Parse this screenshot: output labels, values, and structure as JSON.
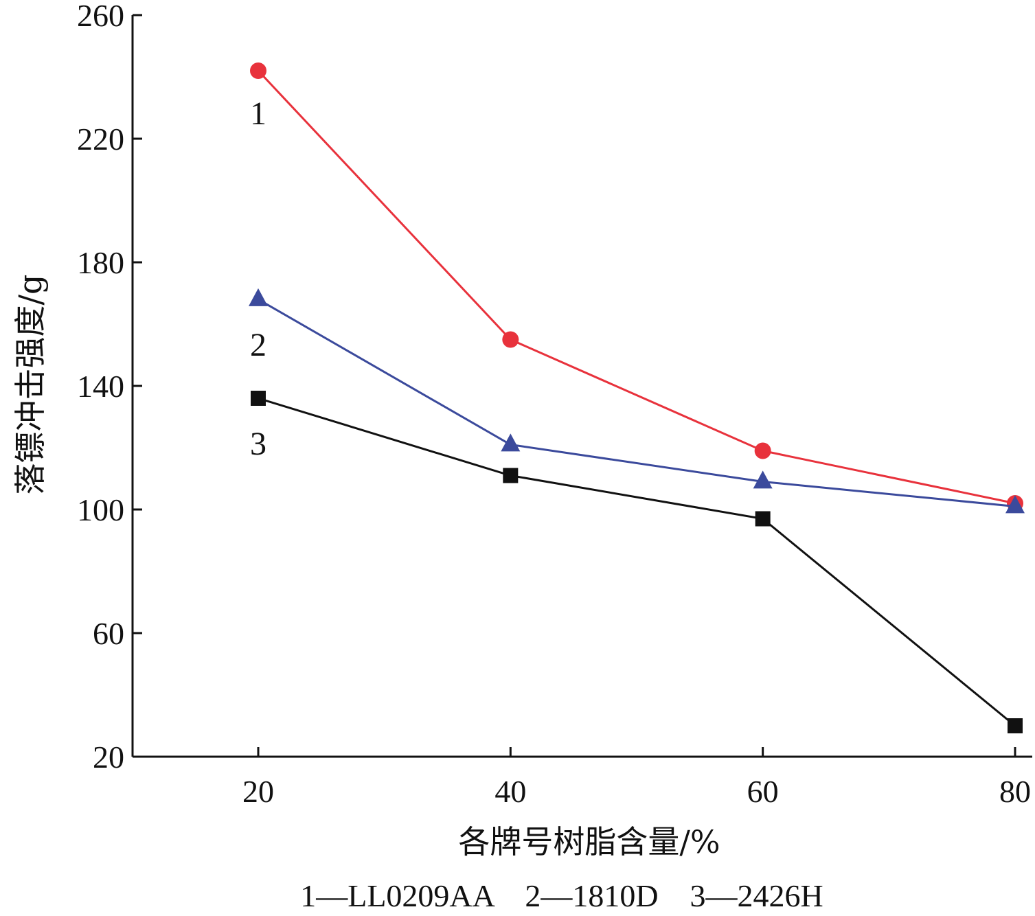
{
  "chart_data": {
    "type": "line",
    "title": "",
    "xlabel": "各牌号树脂含量/%",
    "ylabel": "落镖冲击强度/g",
    "x": [
      20,
      40,
      60,
      80
    ],
    "xlim": [
      10,
      80
    ],
    "ylim": [
      20,
      260
    ],
    "xticks": [
      "20",
      "40",
      "60",
      "80"
    ],
    "yticks": [
      "20",
      "60",
      "100",
      "140",
      "180",
      "220",
      "260"
    ],
    "grid": false,
    "series": [
      {
        "name": "LL0209AA",
        "label": "1",
        "color": "#e8323c",
        "marker": "circle",
        "values": [
          242,
          155,
          119,
          102
        ]
      },
      {
        "name": "1810D",
        "label": "2",
        "color": "#3b4a9c",
        "marker": "triangle",
        "values": [
          168,
          121,
          109,
          101
        ]
      },
      {
        "name": "2426H",
        "label": "3",
        "color": "#111111",
        "marker": "square",
        "values": [
          136,
          111,
          97,
          30
        ]
      }
    ],
    "legend_text": "1—LL0209AA    2—1810D    3—2426H",
    "legend_placement": "bottom"
  }
}
